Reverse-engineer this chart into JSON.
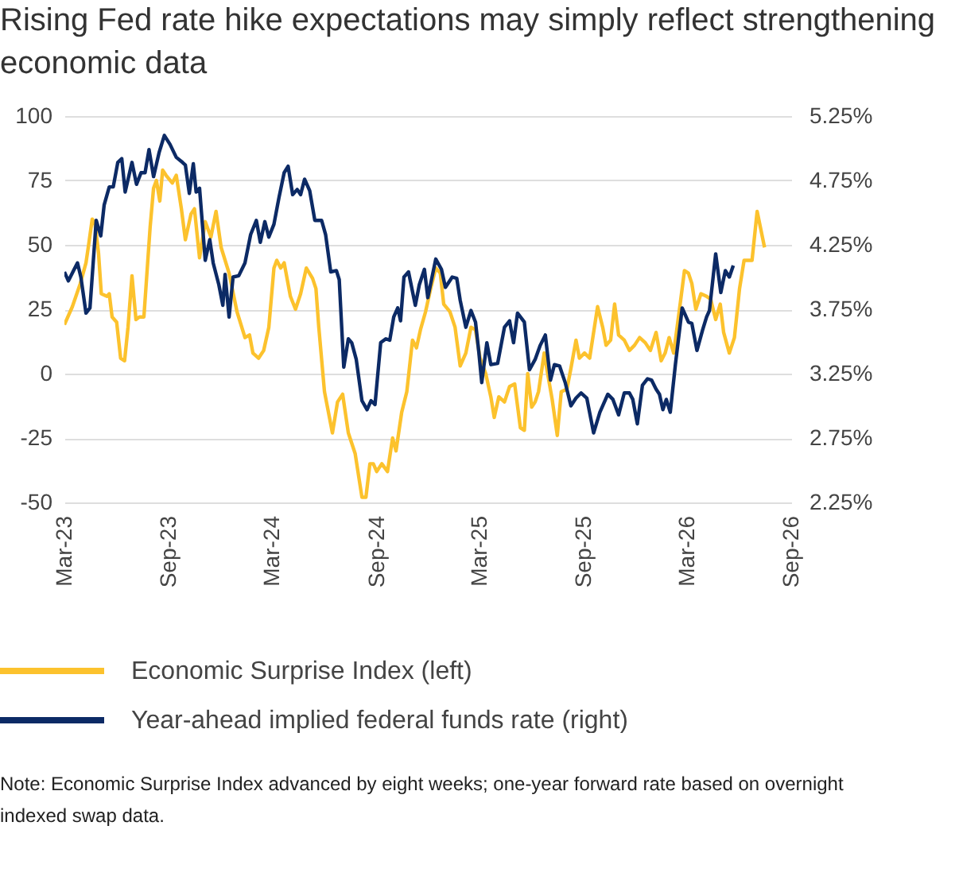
{
  "chart_data": {
    "type": "line",
    "title": "Rising Fed rate hike expectations may simply reflect strengthening economic data",
    "annotations": [
      "Note: Economic Surprise Index advanced by eight weeks; one-year forward rate based on overnight indexed swap data."
    ],
    "series": [
      {
        "name": "Economic Surprise Index (left)",
        "color": "#fcc22d",
        "x": [
          "2023-03-01",
          "2023-03-15",
          "2023-03-29",
          "2023-04-08",
          "2023-04-12",
          "2023-04-19",
          "2023-04-24",
          "2023-04-30",
          "2023-05-05",
          "2023-05-15",
          "2023-05-19",
          "2023-05-24",
          "2023-06-01",
          "2023-06-08",
          "2023-06-15",
          "2023-06-21",
          "2023-06-28",
          "2023-07-05",
          "2023-07-11",
          "2023-07-19",
          "2023-07-30",
          "2023-08-05",
          "2023-08-10",
          "2023-08-16",
          "2023-08-21",
          "2023-08-27",
          "2023-09-07",
          "2023-09-14",
          "2023-09-23",
          "2023-09-30",
          "2023-10-10",
          "2023-10-16",
          "2023-10-25",
          "2023-11-04",
          "2023-11-14",
          "2023-11-23",
          "2023-12-02",
          "2023-12-16",
          "2023-12-30",
          "2024-01-13",
          "2024-01-21",
          "2024-01-27",
          "2024-02-06",
          "2024-02-15",
          "2024-02-24",
          "2024-03-04",
          "2024-03-09",
          "2024-03-16",
          "2024-03-22",
          "2024-04-02",
          "2024-04-11",
          "2024-04-20",
          "2024-04-30",
          "2024-05-11",
          "2024-05-17",
          "2024-05-22",
          "2024-06-01",
          "2024-06-15",
          "2024-06-24",
          "2024-07-03",
          "2024-07-13",
          "2024-07-25",
          "2024-08-06",
          "2024-08-13",
          "2024-08-20",
          "2024-08-26",
          "2024-09-01",
          "2024-09-10",
          "2024-09-20",
          "2024-09-29",
          "2024-10-05",
          "2024-10-15",
          "2024-10-24",
          "2024-11-03",
          "2024-11-10",
          "2024-11-17",
          "2024-11-26",
          "2024-12-05",
          "2024-12-14",
          "2024-12-22",
          "2024-12-28",
          "2025-01-08",
          "2025-01-17",
          "2025-01-26",
          "2025-02-05",
          "2025-02-14",
          "2025-02-22",
          "2025-03-02",
          "2025-03-12",
          "2025-03-21",
          "2025-03-27",
          "2025-04-04",
          "2025-04-14",
          "2025-04-23",
          "2025-05-02",
          "2025-05-12",
          "2025-05-19",
          "2025-05-25",
          "2025-06-01",
          "2025-06-07",
          "2025-06-13",
          "2025-06-23",
          "2025-06-29",
          "2025-07-07",
          "2025-07-16",
          "2025-07-23",
          "2025-08-02",
          "2025-08-09",
          "2025-08-18",
          "2025-08-24",
          "2025-09-02",
          "2025-09-11",
          "2025-09-25",
          "2025-10-04",
          "2025-10-10",
          "2025-10-18",
          "2025-10-25",
          "2025-11-01",
          "2025-11-11",
          "2025-11-20",
          "2025-11-29",
          "2025-12-08",
          "2025-12-18",
          "2025-12-27",
          "2026-01-06",
          "2026-01-15",
          "2026-01-22",
          "2026-01-29",
          "2026-02-06",
          "2026-02-12",
          "2026-02-18",
          "2026-02-25",
          "2026-03-04",
          "2026-03-10",
          "2026-03-17",
          "2026-03-26",
          "2026-04-05",
          "2026-04-12",
          "2026-04-21",
          "2026-04-29",
          "2026-05-05",
          "2026-05-15",
          "2026-05-24",
          "2026-06-02",
          "2026-06-10",
          "2026-06-24",
          "2026-07-03",
          "2026-07-16"
        ],
        "values": [
          19,
          26,
          35,
          43,
          49,
          60,
          58,
          47,
          31,
          30,
          31,
          22,
          20,
          6,
          5,
          18,
          38,
          21,
          22,
          22,
          57,
          72,
          75,
          67,
          79,
          77,
          74,
          77,
          64,
          52,
          62,
          64,
          45,
          59,
          53,
          63,
          49,
          39,
          24,
          14,
          15,
          8,
          6,
          9,
          18,
          41,
          44,
          41,
          43,
          30,
          25,
          31,
          41,
          37,
          33,
          18,
          -7,
          -23,
          -11,
          -8,
          -23,
          -31,
          -48,
          -48,
          -35,
          -35,
          -38,
          -35,
          -38,
          -25,
          -30,
          -15,
          -7,
          13,
          10,
          17,
          24,
          33,
          41,
          39,
          27,
          24,
          18,
          3,
          8,
          18,
          17,
          6,
          0,
          -9,
          -17,
          -9,
          -11,
          -5,
          -4,
          -21,
          -22,
          0,
          -13,
          -11,
          -7,
          8,
          0,
          -10,
          -24,
          -7,
          -6,
          2,
          13,
          6,
          8,
          6,
          26,
          18,
          11,
          13,
          27,
          15,
          13,
          9,
          11,
          14,
          12,
          9,
          16,
          5,
          8,
          14,
          8,
          18,
          28,
          40,
          39,
          35,
          25,
          31,
          30,
          29,
          21,
          27,
          16,
          8,
          14,
          33,
          44,
          44,
          63,
          49
        ]
      },
      {
        "name": "Year-ahead implied federal funds rate (right)",
        "color": "#0c2a65",
        "axis": "y2",
        "x": [
          "2023-03-01",
          "2023-03-08",
          "2023-03-17",
          "2023-03-24",
          "2023-03-30",
          "2023-04-08",
          "2023-04-15",
          "2023-04-26",
          "2023-05-04",
          "2023-05-10",
          "2023-05-19",
          "2023-05-26",
          "2023-06-03",
          "2023-06-10",
          "2023-06-16",
          "2023-06-28",
          "2023-07-06",
          "2023-07-14",
          "2023-07-21",
          "2023-07-28",
          "2023-08-05",
          "2023-08-15",
          "2023-08-24",
          "2023-09-03",
          "2023-09-14",
          "2023-09-25",
          "2023-09-30",
          "2023-10-07",
          "2023-10-14",
          "2023-10-19",
          "2023-10-25",
          "2023-11-04",
          "2023-11-12",
          "2023-11-18",
          "2023-11-28",
          "2023-12-05",
          "2023-12-09",
          "2023-12-16",
          "2023-12-23",
          "2024-01-02",
          "2024-01-13",
          "2024-01-23",
          "2024-02-02",
          "2024-02-09",
          "2024-02-17",
          "2024-02-24",
          "2024-03-04",
          "2024-03-13",
          "2024-03-22",
          "2024-03-29",
          "2024-04-06",
          "2024-04-14",
          "2024-04-20",
          "2024-04-27",
          "2024-05-06",
          "2024-05-15",
          "2024-05-27",
          "2024-06-03",
          "2024-06-12",
          "2024-06-22",
          "2024-06-27",
          "2024-07-05",
          "2024-07-13",
          "2024-07-19",
          "2024-07-27",
          "2024-08-06",
          "2024-08-15",
          "2024-08-22",
          "2024-08-29",
          "2024-09-08",
          "2024-09-17",
          "2024-09-24",
          "2024-10-01",
          "2024-10-08",
          "2024-10-13",
          "2024-10-19",
          "2024-10-27",
          "2024-11-08",
          "2024-11-15",
          "2024-11-24",
          "2024-11-30",
          "2024-12-14",
          "2024-12-24",
          "2024-12-31",
          "2025-01-12",
          "2025-01-20",
          "2025-01-26",
          "2025-02-05",
          "2025-02-14",
          "2025-02-22",
          "2025-02-28",
          "2025-03-05",
          "2025-03-14",
          "2025-03-21",
          "2025-04-02",
          "2025-04-14",
          "2025-04-23",
          "2025-04-30",
          "2025-05-07",
          "2025-05-19",
          "2025-05-28",
          "2025-06-07",
          "2025-06-16",
          "2025-06-25",
          "2025-07-04",
          "2025-07-11",
          "2025-07-20",
          "2025-07-30",
          "2025-08-09",
          "2025-08-18",
          "2025-08-27",
          "2025-09-06",
          "2025-09-18",
          "2025-09-29",
          "2025-10-13",
          "2025-10-22",
          "2025-11-01",
          "2025-11-11",
          "2025-11-20",
          "2025-11-26",
          "2025-12-04",
          "2025-12-13",
          "2025-12-22",
          "2025-12-29",
          "2026-01-06",
          "2026-01-12",
          "2026-01-18",
          "2026-01-24",
          "2026-01-31",
          "2026-02-09",
          "2026-02-21",
          "2026-03-04",
          "2026-03-10",
          "2026-03-19",
          "2026-03-29",
          "2026-04-05",
          "2026-04-10",
          "2026-04-21",
          "2026-04-30",
          "2026-05-08",
          "2026-05-15",
          "2026-05-22"
        ],
        "values": [
          4.04,
          3.97,
          4.05,
          4.11,
          4.0,
          3.72,
          3.76,
          4.44,
          4.32,
          4.56,
          4.7,
          4.7,
          4.89,
          4.92,
          4.66,
          4.89,
          4.72,
          4.81,
          4.81,
          4.99,
          4.78,
          4.97,
          5.1,
          5.03,
          4.93,
          4.89,
          4.87,
          4.65,
          4.88,
          4.66,
          4.69,
          4.13,
          4.29,
          4.11,
          3.94,
          3.78,
          4.02,
          3.69,
          4.0,
          4.01,
          4.11,
          4.33,
          4.44,
          4.27,
          4.43,
          4.31,
          4.41,
          4.62,
          4.81,
          4.86,
          4.64,
          4.68,
          4.64,
          4.76,
          4.67,
          4.44,
          4.44,
          4.33,
          4.04,
          4.05,
          3.98,
          3.3,
          3.52,
          3.49,
          3.36,
          3.04,
          2.97,
          3.04,
          3.01,
          3.49,
          3.52,
          3.51,
          3.69,
          3.76,
          3.66,
          4.0,
          4.04,
          3.78,
          3.94,
          4.06,
          3.84,
          4.14,
          4.06,
          3.92,
          4.0,
          3.99,
          3.82,
          3.61,
          3.74,
          3.65,
          3.41,
          3.18,
          3.49,
          3.32,
          3.33,
          3.61,
          3.66,
          3.49,
          3.72,
          3.65,
          3.28,
          3.36,
          3.47,
          3.55,
          3.2,
          3.32,
          3.31,
          3.18,
          3.0,
          3.06,
          3.1,
          3.06,
          2.79,
          2.95,
          3.09,
          3.05,
          2.93,
          3.1,
          3.1,
          3.05,
          2.86,
          3.16,
          3.21,
          3.2,
          3.13,
          3.09,
          2.97,
          3.05,
          2.95,
          3.32,
          3.76,
          3.65,
          3.64,
          3.43,
          3.59,
          3.69,
          3.74,
          4.18,
          3.88,
          4.05,
          4.0,
          4.09
        ]
      }
    ],
    "xlim": [
      "2023-03",
      "2026-09"
    ],
    "xticks": [
      {
        "value": "2023-03",
        "label": "Mar-23"
      },
      {
        "value": "2023-09",
        "label": "Sep-23"
      },
      {
        "value": "2024-03",
        "label": "Mar-24"
      },
      {
        "value": "2024-09",
        "label": "Sep-24"
      },
      {
        "value": "2025-03",
        "label": "Mar-25"
      },
      {
        "value": "2025-09",
        "label": "Sep-25"
      },
      {
        "value": "2026-03",
        "label": "Mar-26"
      },
      {
        "value": "2026-09",
        "label": "Sep-26"
      }
    ],
    "ylim": [
      -50,
      100
    ],
    "yticks": [
      -50,
      -25,
      0,
      25,
      50,
      75,
      100
    ],
    "y2lim": [
      2.25,
      5.25
    ],
    "y2ticks": [
      {
        "value": 2.25,
        "label": "2.25%"
      },
      {
        "value": 2.75,
        "label": "2.75%"
      },
      {
        "value": 3.25,
        "label": "3.25%"
      },
      {
        "value": 3.75,
        "label": "3.75%"
      },
      {
        "value": 4.25,
        "label": "4.25%"
      },
      {
        "value": 4.75,
        "label": "4.75%"
      },
      {
        "value": 5.25,
        "label": "5.25%"
      }
    ],
    "grid": "y",
    "legend": "bottom left"
  }
}
